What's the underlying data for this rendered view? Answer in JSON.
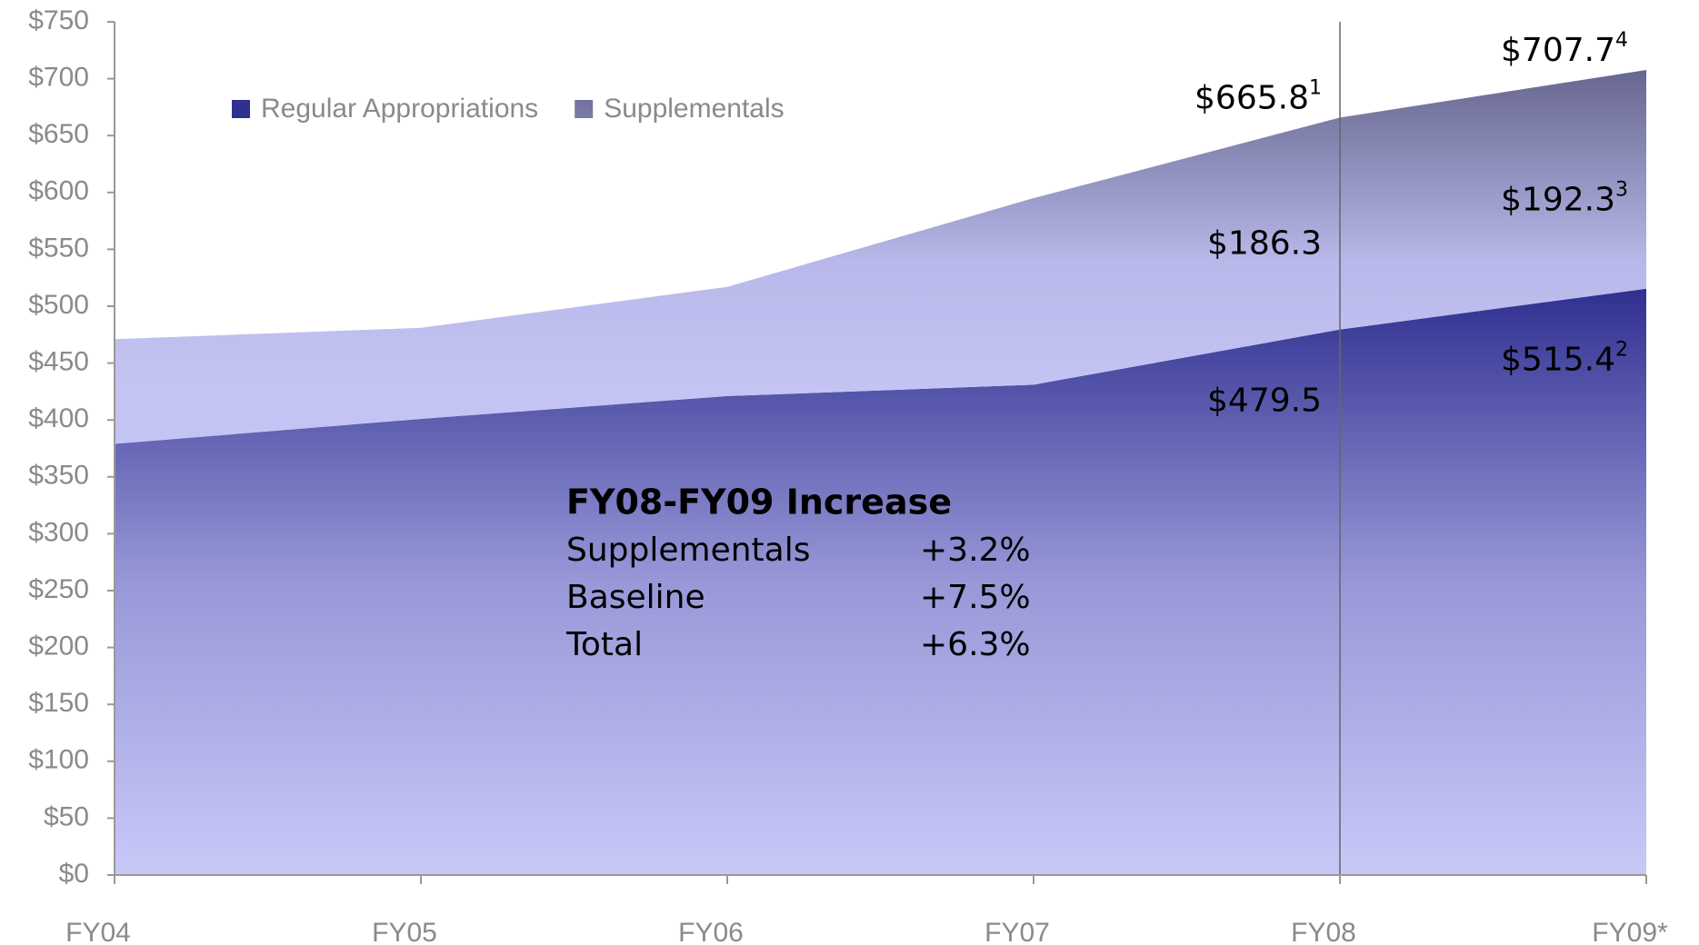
{
  "chart_data": {
    "type": "stacked_area",
    "categories": [
      "FY04",
      "FY05",
      "FY06",
      "FY07",
      "FY08",
      "FY09*"
    ],
    "series": [
      {
        "name": "Regular Appropriations",
        "color": "#2f3090",
        "values": [
          379,
          401,
          421,
          431,
          479.5,
          515.4
        ],
        "value_labels": [
          null,
          null,
          null,
          null,
          "$479.5",
          "$515.4"
        ],
        "value_label_notes": [
          null,
          null,
          null,
          null,
          null,
          "2"
        ]
      },
      {
        "name": "Supplementals",
        "color": "#6a6a9a",
        "values": [
          92,
          80,
          96,
          164,
          186.3,
          192.3
        ],
        "value_labels": [
          null,
          null,
          null,
          null,
          "$186.3",
          "$192.3"
        ],
        "value_label_notes": [
          null,
          null,
          null,
          null,
          null,
          "3"
        ]
      }
    ],
    "total_labels": [
      null,
      null,
      null,
      null,
      "$665.8",
      "$707.7"
    ],
    "total_label_notes": [
      null,
      null,
      null,
      null,
      "1",
      "4"
    ],
    "vline": "FY08",
    "ylim": [
      0,
      750
    ],
    "yticks": [
      {
        "value": 0,
        "label": "$0"
      },
      {
        "value": 50,
        "label": "$50"
      },
      {
        "value": 100,
        "label": "$100"
      },
      {
        "value": 150,
        "label": "$150"
      },
      {
        "value": 200,
        "label": "$200"
      },
      {
        "value": 250,
        "label": "$250"
      },
      {
        "value": 300,
        "label": "$300"
      },
      {
        "value": 350,
        "label": "$350"
      },
      {
        "value": 400,
        "label": "$400"
      },
      {
        "value": 450,
        "label": "$450"
      },
      {
        "value": 500,
        "label": "$500"
      },
      {
        "value": 550,
        "label": "$550"
      },
      {
        "value": 600,
        "label": "$600"
      },
      {
        "value": 650,
        "label": "$650"
      },
      {
        "value": 700,
        "label": "$700"
      },
      {
        "value": 750,
        "label": "$750"
      }
    ],
    "legend": "top-left",
    "textbox": {
      "title": "FY08-FY09 Increase",
      "rows": [
        [
          "Supplementals",
          "+3.2%"
        ],
        [
          "Baseline",
          "+7.5%"
        ],
        [
          "Total",
          "+6.3%"
        ]
      ]
    }
  }
}
